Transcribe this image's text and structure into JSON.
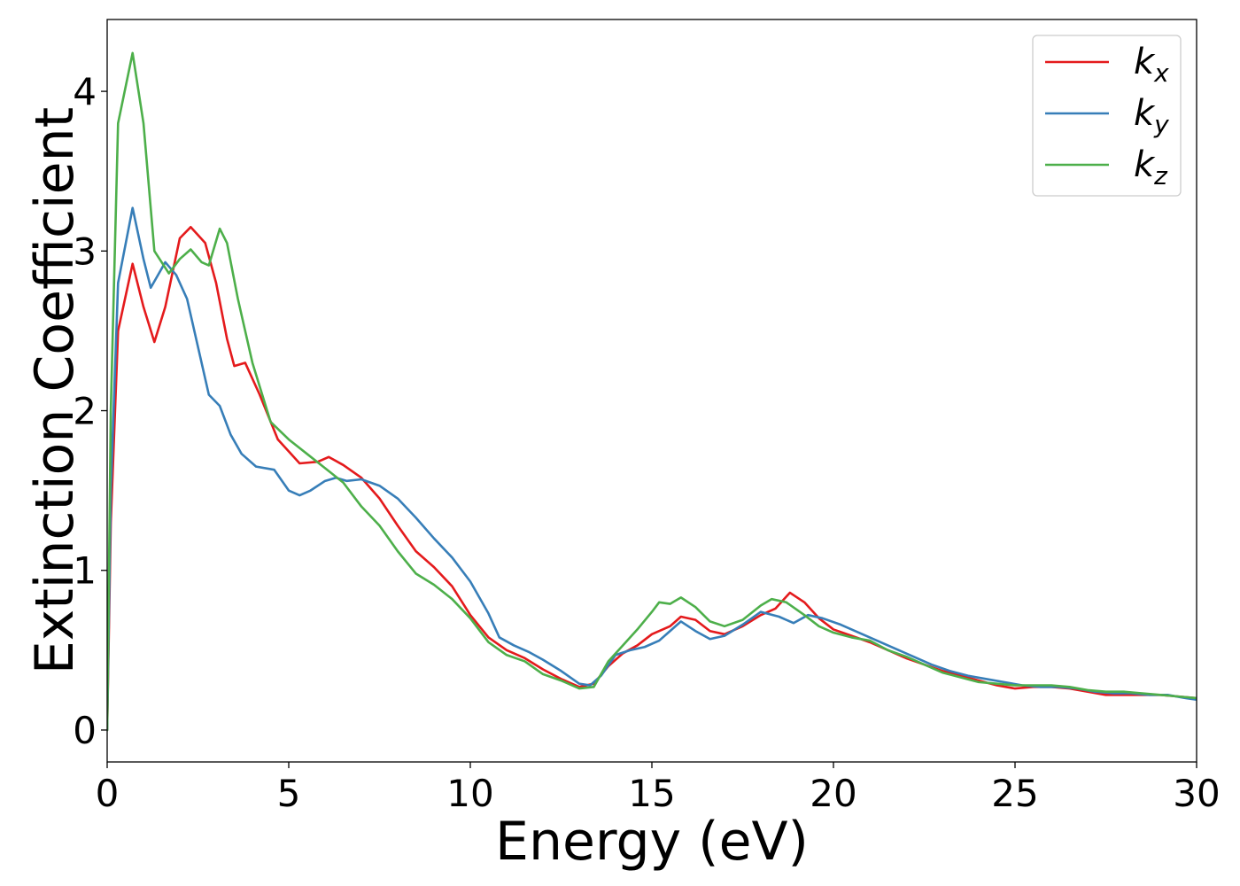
{
  "chart_data": {
    "type": "line",
    "title": "",
    "xlabel": "Energy (eV)",
    "ylabel": "Extinction Coefficient",
    "xlim": [
      0,
      30
    ],
    "ylim": [
      -0.2,
      4.45
    ],
    "xticks": [
      0,
      5,
      10,
      15,
      20,
      25,
      30
    ],
    "yticks": [
      0,
      1,
      2,
      3,
      4
    ],
    "grid": false,
    "legend_position": "top-right",
    "series": [
      {
        "name": "k",
        "subscript": "x",
        "color": "#e41a1c",
        "points": [
          [
            0,
            0
          ],
          [
            0.1,
            1.3
          ],
          [
            0.3,
            2.5
          ],
          [
            0.7,
            2.92
          ],
          [
            1.0,
            2.65
          ],
          [
            1.3,
            2.43
          ],
          [
            1.6,
            2.65
          ],
          [
            2.0,
            3.08
          ],
          [
            2.3,
            3.15
          ],
          [
            2.7,
            3.05
          ],
          [
            3.0,
            2.8
          ],
          [
            3.3,
            2.45
          ],
          [
            3.5,
            2.28
          ],
          [
            3.8,
            2.3
          ],
          [
            4.2,
            2.1
          ],
          [
            4.7,
            1.82
          ],
          [
            5.3,
            1.67
          ],
          [
            5.8,
            1.68
          ],
          [
            6.1,
            1.71
          ],
          [
            6.5,
            1.66
          ],
          [
            7.0,
            1.58
          ],
          [
            7.5,
            1.45
          ],
          [
            8.0,
            1.28
          ],
          [
            8.5,
            1.12
          ],
          [
            9.0,
            1.02
          ],
          [
            9.5,
            0.9
          ],
          [
            10.0,
            0.72
          ],
          [
            10.5,
            0.58
          ],
          [
            11.0,
            0.5
          ],
          [
            11.5,
            0.45
          ],
          [
            12.0,
            0.38
          ],
          [
            12.5,
            0.32
          ],
          [
            13.0,
            0.27
          ],
          [
            13.4,
            0.29
          ],
          [
            13.8,
            0.4
          ],
          [
            14.2,
            0.48
          ],
          [
            14.6,
            0.53
          ],
          [
            15.0,
            0.6
          ],
          [
            15.5,
            0.65
          ],
          [
            15.8,
            0.71
          ],
          [
            16.2,
            0.69
          ],
          [
            16.6,
            0.62
          ],
          [
            17.0,
            0.6
          ],
          [
            17.5,
            0.65
          ],
          [
            18.0,
            0.72
          ],
          [
            18.4,
            0.76
          ],
          [
            18.8,
            0.86
          ],
          [
            19.2,
            0.8
          ],
          [
            19.6,
            0.7
          ],
          [
            20.0,
            0.63
          ],
          [
            20.5,
            0.59
          ],
          [
            21.0,
            0.55
          ],
          [
            21.5,
            0.5
          ],
          [
            22.0,
            0.45
          ],
          [
            22.5,
            0.41
          ],
          [
            23.0,
            0.37
          ],
          [
            23.5,
            0.34
          ],
          [
            24.0,
            0.31
          ],
          [
            24.5,
            0.28
          ],
          [
            25.0,
            0.26
          ],
          [
            25.5,
            0.27
          ],
          [
            26.0,
            0.27
          ],
          [
            26.5,
            0.26
          ],
          [
            27.0,
            0.24
          ],
          [
            27.5,
            0.22
          ],
          [
            28.0,
            0.22
          ],
          [
            28.5,
            0.22
          ],
          [
            29.0,
            0.22
          ],
          [
            29.5,
            0.21
          ],
          [
            30.0,
            0.2
          ]
        ]
      },
      {
        "name": "k",
        "subscript": "y",
        "color": "#377eb8",
        "points": [
          [
            0,
            0
          ],
          [
            0.1,
            1.5
          ],
          [
            0.3,
            2.8
          ],
          [
            0.7,
            3.27
          ],
          [
            1.0,
            2.95
          ],
          [
            1.2,
            2.77
          ],
          [
            1.4,
            2.85
          ],
          [
            1.6,
            2.93
          ],
          [
            1.9,
            2.85
          ],
          [
            2.2,
            2.7
          ],
          [
            2.5,
            2.4
          ],
          [
            2.8,
            2.1
          ],
          [
            3.1,
            2.03
          ],
          [
            3.4,
            1.85
          ],
          [
            3.7,
            1.73
          ],
          [
            4.1,
            1.65
          ],
          [
            4.6,
            1.63
          ],
          [
            5.0,
            1.5
          ],
          [
            5.3,
            1.47
          ],
          [
            5.6,
            1.5
          ],
          [
            6.0,
            1.56
          ],
          [
            6.3,
            1.58
          ],
          [
            6.6,
            1.56
          ],
          [
            7.0,
            1.57
          ],
          [
            7.5,
            1.53
          ],
          [
            8.0,
            1.45
          ],
          [
            8.5,
            1.33
          ],
          [
            9.0,
            1.2
          ],
          [
            9.5,
            1.08
          ],
          [
            10.0,
            0.93
          ],
          [
            10.5,
            0.73
          ],
          [
            10.8,
            0.58
          ],
          [
            11.2,
            0.53
          ],
          [
            11.6,
            0.49
          ],
          [
            12.0,
            0.44
          ],
          [
            12.5,
            0.37
          ],
          [
            13.0,
            0.29
          ],
          [
            13.3,
            0.28
          ],
          [
            13.6,
            0.34
          ],
          [
            14.0,
            0.47
          ],
          [
            14.4,
            0.5
          ],
          [
            14.8,
            0.52
          ],
          [
            15.2,
            0.56
          ],
          [
            15.5,
            0.62
          ],
          [
            15.8,
            0.68
          ],
          [
            16.2,
            0.62
          ],
          [
            16.6,
            0.57
          ],
          [
            17.0,
            0.59
          ],
          [
            17.5,
            0.66
          ],
          [
            18.0,
            0.74
          ],
          [
            18.5,
            0.71
          ],
          [
            18.9,
            0.67
          ],
          [
            19.3,
            0.72
          ],
          [
            19.7,
            0.7
          ],
          [
            20.2,
            0.66
          ],
          [
            20.7,
            0.61
          ],
          [
            21.2,
            0.56
          ],
          [
            21.7,
            0.51
          ],
          [
            22.2,
            0.46
          ],
          [
            22.7,
            0.41
          ],
          [
            23.2,
            0.37
          ],
          [
            23.7,
            0.34
          ],
          [
            24.2,
            0.32
          ],
          [
            24.7,
            0.3
          ],
          [
            25.2,
            0.28
          ],
          [
            25.7,
            0.27
          ],
          [
            26.2,
            0.27
          ],
          [
            26.7,
            0.26
          ],
          [
            27.2,
            0.24
          ],
          [
            27.7,
            0.23
          ],
          [
            28.2,
            0.23
          ],
          [
            28.7,
            0.22
          ],
          [
            29.2,
            0.22
          ],
          [
            29.7,
            0.2
          ],
          [
            30.0,
            0.19
          ]
        ]
      },
      {
        "name": "k",
        "subscript": "z",
        "color": "#4daf4a",
        "points": [
          [
            0,
            0
          ],
          [
            0.1,
            2.0
          ],
          [
            0.3,
            3.8
          ],
          [
            0.7,
            4.24
          ],
          [
            1.0,
            3.8
          ],
          [
            1.3,
            3.0
          ],
          [
            1.7,
            2.86
          ],
          [
            2.0,
            2.95
          ],
          [
            2.3,
            3.01
          ],
          [
            2.6,
            2.93
          ],
          [
            2.8,
            2.91
          ],
          [
            3.1,
            3.14
          ],
          [
            3.3,
            3.05
          ],
          [
            3.6,
            2.7
          ],
          [
            4.0,
            2.3
          ],
          [
            4.5,
            1.93
          ],
          [
            5.0,
            1.82
          ],
          [
            5.5,
            1.73
          ],
          [
            6.0,
            1.64
          ],
          [
            6.5,
            1.55
          ],
          [
            7.0,
            1.4
          ],
          [
            7.5,
            1.28
          ],
          [
            8.0,
            1.12
          ],
          [
            8.5,
            0.98
          ],
          [
            9.0,
            0.91
          ],
          [
            9.5,
            0.82
          ],
          [
            10.0,
            0.7
          ],
          [
            10.5,
            0.55
          ],
          [
            11.0,
            0.47
          ],
          [
            11.5,
            0.43
          ],
          [
            12.0,
            0.35
          ],
          [
            12.5,
            0.31
          ],
          [
            13.0,
            0.26
          ],
          [
            13.4,
            0.27
          ],
          [
            13.8,
            0.43
          ],
          [
            14.2,
            0.53
          ],
          [
            14.6,
            0.63
          ],
          [
            15.0,
            0.74
          ],
          [
            15.2,
            0.8
          ],
          [
            15.5,
            0.79
          ],
          [
            15.8,
            0.83
          ],
          [
            16.2,
            0.77
          ],
          [
            16.6,
            0.68
          ],
          [
            17.0,
            0.65
          ],
          [
            17.5,
            0.69
          ],
          [
            18.0,
            0.78
          ],
          [
            18.3,
            0.82
          ],
          [
            18.7,
            0.8
          ],
          [
            19.2,
            0.72
          ],
          [
            19.6,
            0.65
          ],
          [
            20.0,
            0.61
          ],
          [
            20.5,
            0.58
          ],
          [
            21.0,
            0.56
          ],
          [
            21.5,
            0.5
          ],
          [
            22.0,
            0.46
          ],
          [
            22.5,
            0.41
          ],
          [
            23.0,
            0.36
          ],
          [
            23.5,
            0.33
          ],
          [
            24.0,
            0.3
          ],
          [
            24.5,
            0.29
          ],
          [
            25.0,
            0.28
          ],
          [
            25.5,
            0.28
          ],
          [
            26.0,
            0.28
          ],
          [
            26.5,
            0.27
          ],
          [
            27.0,
            0.25
          ],
          [
            27.5,
            0.24
          ],
          [
            28.0,
            0.24
          ],
          [
            28.5,
            0.23
          ],
          [
            29.0,
            0.22
          ],
          [
            29.5,
            0.21
          ],
          [
            30.0,
            0.2
          ]
        ]
      }
    ]
  }
}
